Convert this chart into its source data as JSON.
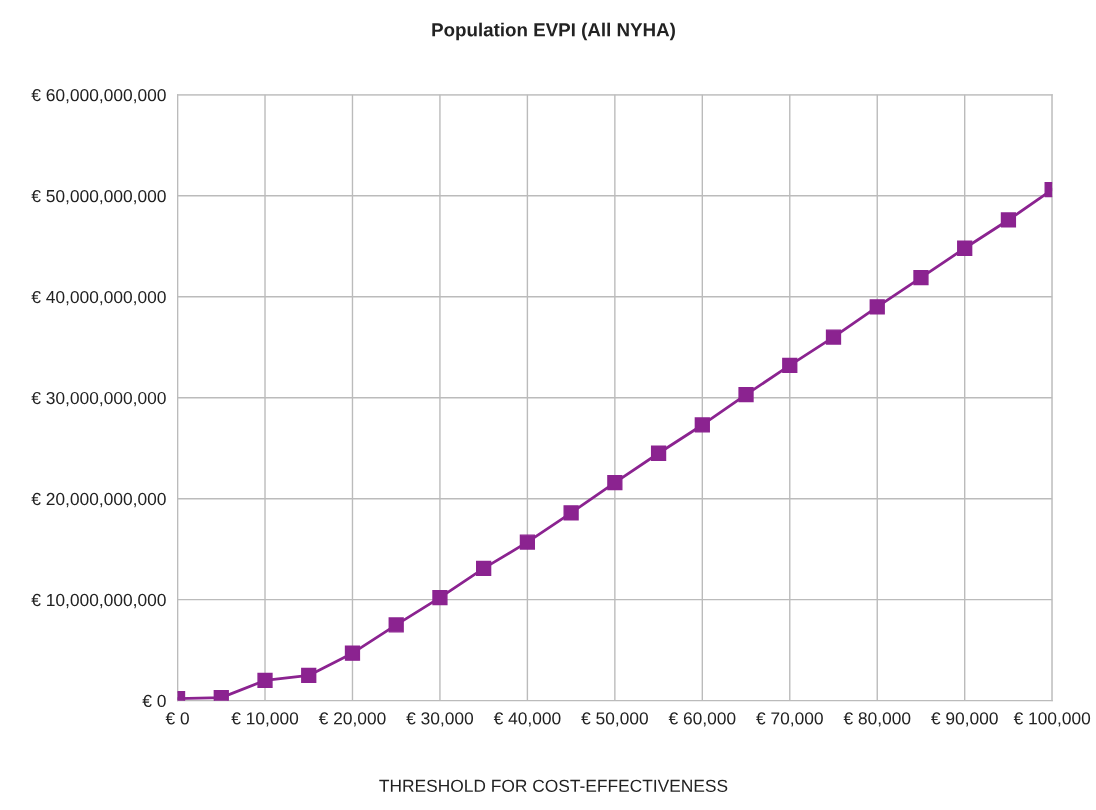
{
  "chart_data": {
    "type": "line",
    "title": "Population EVPI (All NYHA)",
    "xlabel": "THRESHOLD FOR COST-EFFECTIVENESS",
    "x": [
      0,
      5000,
      10000,
      15000,
      20000,
      25000,
      30000,
      35000,
      40000,
      45000,
      50000,
      55000,
      60000,
      65000,
      70000,
      75000,
      80000,
      85000,
      90000,
      95000,
      100000
    ],
    "series": [
      {
        "color": "#8b2390",
        "values": [
          200000000.0,
          300000000.0,
          2000000000.0,
          2500000000.0,
          4700000000.0,
          7500000000.0,
          10200000000.0,
          13100000000.0,
          15700000000.0,
          18600000000.0,
          21600000000.0,
          24500000000.0,
          27300000000.0,
          30300000000.0,
          33200000000.0,
          36000000000.0,
          39000000000.0,
          41900000000.0,
          44800000000.0,
          47600000000.0,
          50600000000.0
        ]
      }
    ],
    "xlim": [
      0,
      100000
    ],
    "xticks": [
      {
        "value": 0,
        "label": "€ 0"
      },
      {
        "value": 10000,
        "label": "€ 10,000"
      },
      {
        "value": 20000,
        "label": "€ 20,000"
      },
      {
        "value": 30000,
        "label": "€ 30,000"
      },
      {
        "value": 40000,
        "label": "€ 40,000"
      },
      {
        "value": 50000,
        "label": "€ 50,000"
      },
      {
        "value": 60000,
        "label": "€ 60,000"
      },
      {
        "value": 70000,
        "label": "€ 70,000"
      },
      {
        "value": 80000,
        "label": "€ 80,000"
      },
      {
        "value": 90000,
        "label": "€ 90,000"
      },
      {
        "value": 100000,
        "label": "€ 100,000"
      }
    ],
    "ylim": [
      0,
      60000000000
    ],
    "yticks": [
      {
        "value": 0,
        "label": "€ 0"
      },
      {
        "value": 10000000000,
        "label": "€ 10,000,000,000"
      },
      {
        "value": 20000000000,
        "label": "€ 20,000,000,000"
      },
      {
        "value": 30000000000,
        "label": "€ 30,000,000,000"
      },
      {
        "value": 40000000000,
        "label": "€ 40,000,000,000"
      },
      {
        "value": 50000000000,
        "label": "€ 50,000,000,000"
      },
      {
        "value": 60000000000,
        "label": "€ 60,000,000,000"
      }
    ],
    "grid": true,
    "marker": "square",
    "line_style": "solid"
  }
}
